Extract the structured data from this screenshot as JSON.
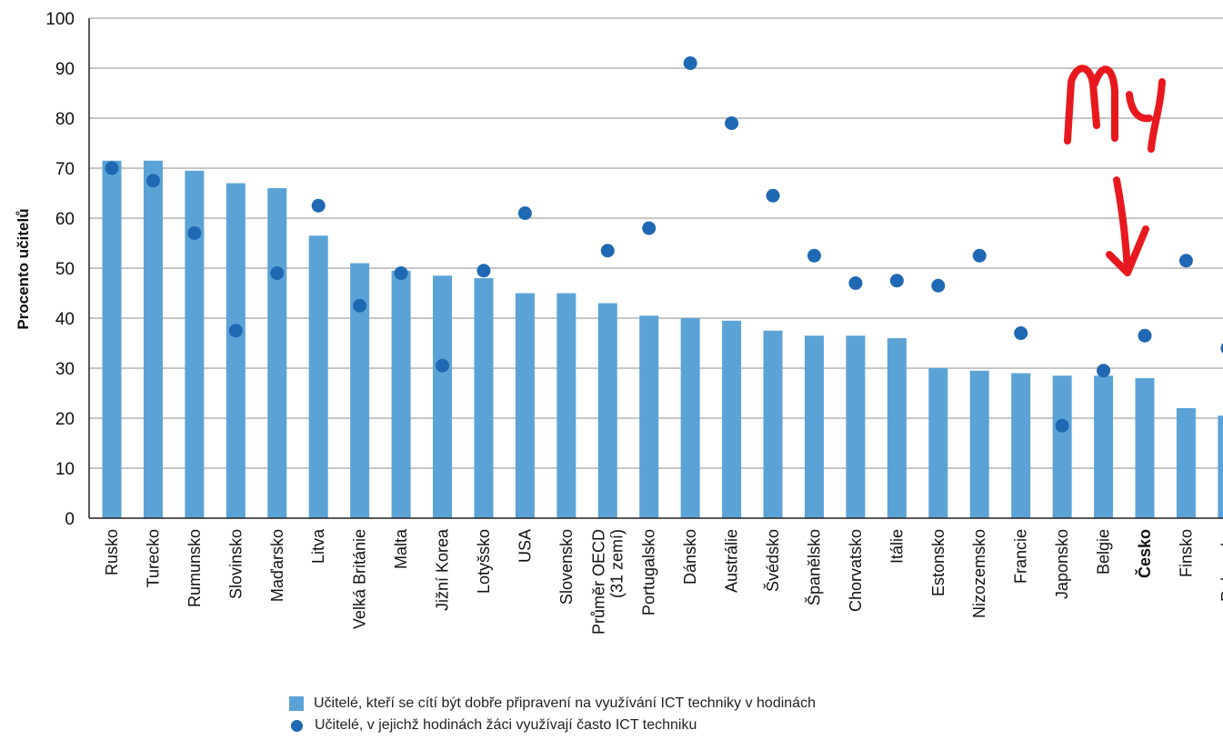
{
  "chart_data": {
    "type": "bar",
    "ylabel": "Procento učitelů",
    "ylim": [
      0,
      100
    ],
    "yticks": [
      0,
      10,
      20,
      30,
      40,
      50,
      60,
      70,
      80,
      90,
      100
    ],
    "grid": true,
    "categories": [
      "Rusko",
      "Turecko",
      "Rumunsko",
      "Slovinsko",
      "Maďarsko",
      "Litva",
      "Velká Británie",
      "Malta",
      "Jižní Korea",
      "Lotyšsko",
      "USA",
      "Slovensko",
      "Průměr OECD (31 zemí)",
      "Portugalsko",
      "Dánsko",
      "Austrálie",
      "Švédsko",
      "Španělsko",
      "Chorvatsko",
      "Itálie",
      "Estonsko",
      "Nizozemsko",
      "Francie",
      "Japonsko",
      "Belgie",
      "Česko",
      "Finsko",
      "Rakousko"
    ],
    "highlight_category": "Česko",
    "series": [
      {
        "name": "Učitelé, kteří se cítí být dobře připravení na využívání ICT techniky v hodinách",
        "kind": "bar",
        "color": "#5ba3d6",
        "values": [
          71.5,
          71.5,
          69.5,
          67,
          66,
          56.5,
          51,
          49.5,
          48.5,
          48,
          45,
          45,
          43,
          40.5,
          40,
          39.5,
          37.5,
          36.5,
          36.5,
          36,
          30,
          29.5,
          29,
          28.5,
          28.5,
          28,
          22,
          20.5
        ]
      },
      {
        "name": "Učitelé, v jejichž hodinách žáci využívají často ICT techniku",
        "kind": "scatter",
        "color": "#1f68b3",
        "values": [
          70,
          67.5,
          57,
          37.5,
          49,
          62.5,
          42.5,
          49,
          30.5,
          49.5,
          61,
          null,
          53.5,
          58,
          91,
          79,
          64.5,
          52.5,
          47,
          47.5,
          46.5,
          52.5,
          37,
          18.5,
          29.5,
          36.5,
          51.5,
          34
        ]
      }
    ],
    "annotation": {
      "text": "My",
      "color": "#e8191e"
    }
  }
}
